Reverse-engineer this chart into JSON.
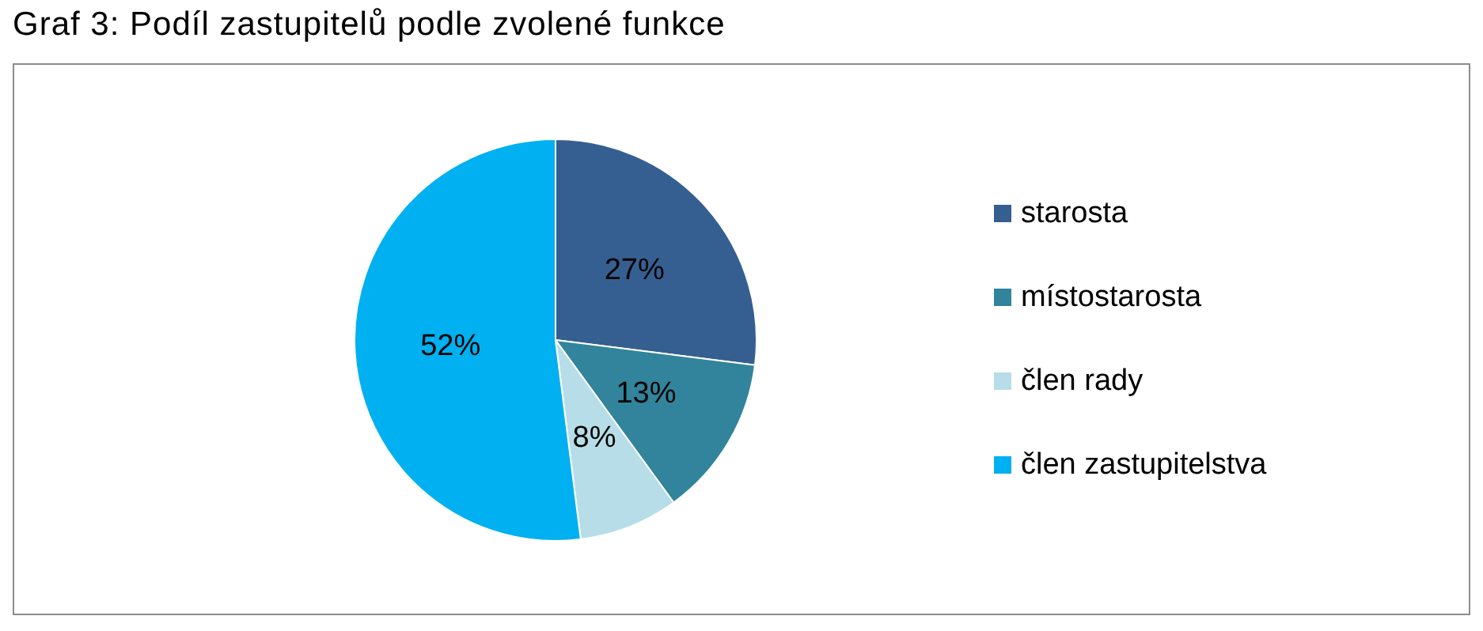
{
  "chart_data": {
    "type": "pie",
    "title": "Graf 3: Podíl zastupitelů podle zvolené funkce",
    "categories": [
      "starosta",
      "místostarosta",
      "člen rady",
      "člen zastupitelstva"
    ],
    "values": [
      27,
      13,
      8,
      52
    ],
    "colors": [
      "#365f91",
      "#31849b",
      "#b7dee8",
      "#00b0f0"
    ],
    "value_labels": [
      "27%",
      "13%",
      "8%",
      "52%"
    ],
    "legend": "right"
  }
}
